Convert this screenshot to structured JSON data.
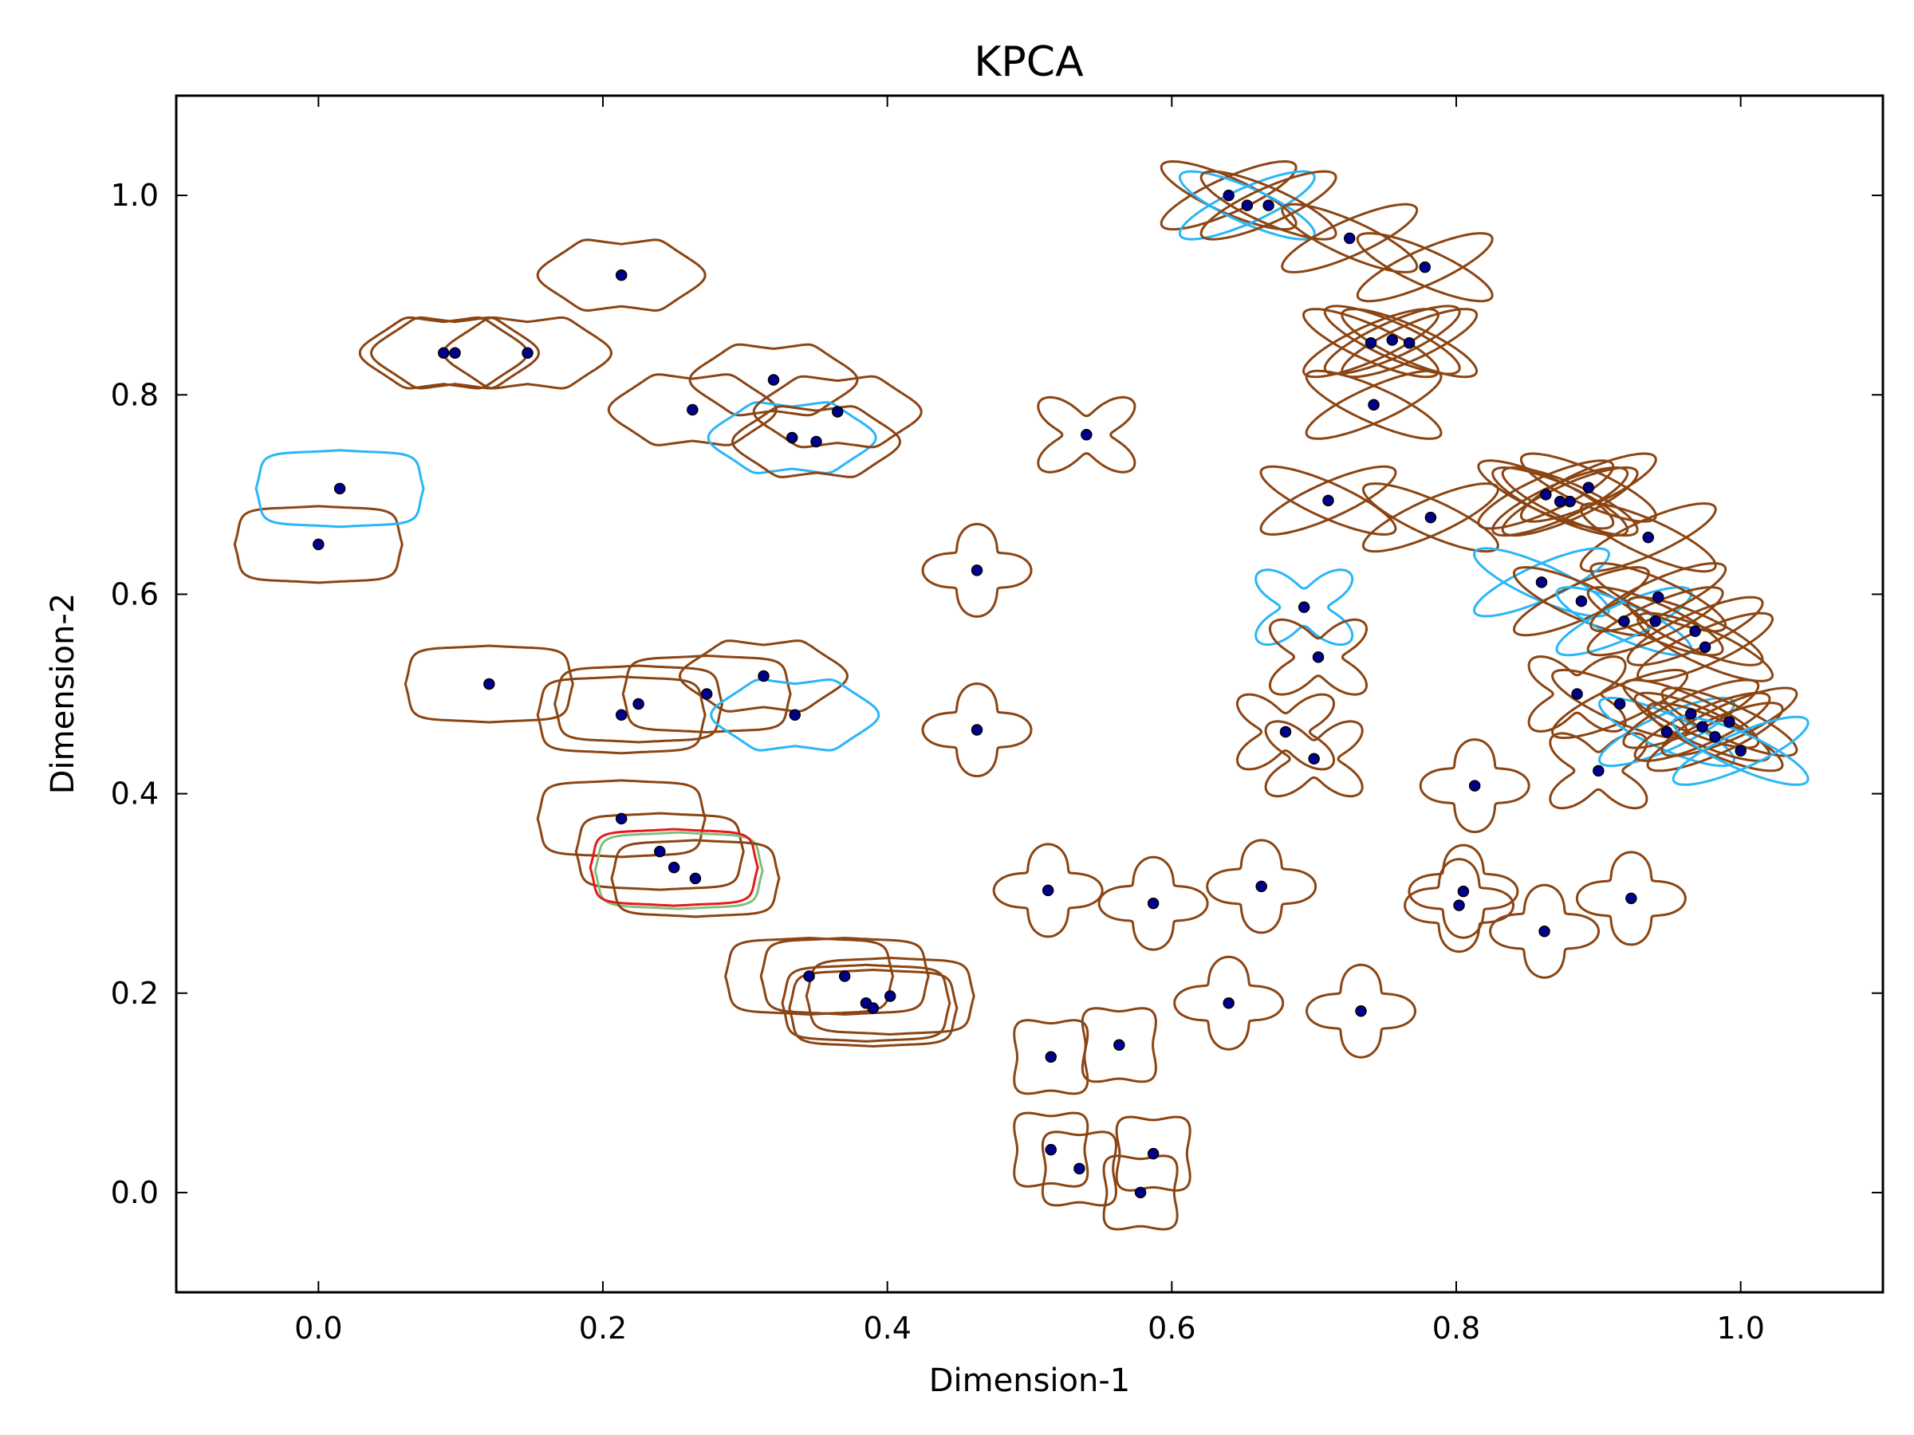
{
  "chart_data": {
    "type": "scatter",
    "title": "KPCA",
    "xlabel": "Dimension-1",
    "ylabel": "Dimension-2",
    "xlim": [
      -0.1,
      1.1
    ],
    "ylim": [
      -0.1,
      1.1
    ],
    "xticks": [
      "0.0",
      "0.2",
      "0.4",
      "0.6",
      "0.8",
      "1.0"
    ],
    "yticks": [
      "0.0",
      "0.2",
      "0.4",
      "0.6",
      "0.8",
      "1.0"
    ],
    "grid": false,
    "legend": "none",
    "colors": {
      "point_fill": "#00008b",
      "glyph_main": "#8b4513",
      "glyph_highlight": "#29b6f6",
      "glyph_accent_red": "#e41a1c",
      "glyph_accent_green": "#7fbf7f"
    },
    "points": [
      {
        "x": 0.0,
        "y": 0.65,
        "shape": "rect",
        "color": "main"
      },
      {
        "x": 0.015,
        "y": 0.706,
        "shape": "rect",
        "color": "highlight"
      },
      {
        "x": 0.088,
        "y": 0.842,
        "shape": "bow",
        "color": "main"
      },
      {
        "x": 0.096,
        "y": 0.842,
        "shape": "bow",
        "color": "main"
      },
      {
        "x": 0.147,
        "y": 0.842,
        "shape": "bow",
        "color": "main"
      },
      {
        "x": 0.213,
        "y": 0.92,
        "shape": "bow",
        "color": "main"
      },
      {
        "x": 0.263,
        "y": 0.785,
        "shape": "bow",
        "color": "main"
      },
      {
        "x": 0.32,
        "y": 0.815,
        "shape": "bow",
        "color": "main"
      },
      {
        "x": 0.333,
        "y": 0.757,
        "shape": "bow",
        "color": "highlight"
      },
      {
        "x": 0.35,
        "y": 0.753,
        "shape": "bow",
        "color": "main"
      },
      {
        "x": 0.365,
        "y": 0.783,
        "shape": "bow",
        "color": "main"
      },
      {
        "x": 0.12,
        "y": 0.51,
        "shape": "rect",
        "color": "main"
      },
      {
        "x": 0.213,
        "y": 0.479,
        "shape": "rect",
        "color": "main"
      },
      {
        "x": 0.225,
        "y": 0.49,
        "shape": "rect",
        "color": "main"
      },
      {
        "x": 0.273,
        "y": 0.5,
        "shape": "rect",
        "color": "main"
      },
      {
        "x": 0.313,
        "y": 0.518,
        "shape": "bow",
        "color": "main"
      },
      {
        "x": 0.335,
        "y": 0.479,
        "shape": "bow",
        "color": "highlight"
      },
      {
        "x": 0.213,
        "y": 0.375,
        "shape": "rect",
        "color": "main"
      },
      {
        "x": 0.24,
        "y": 0.342,
        "shape": "rect",
        "color": "main"
      },
      {
        "x": 0.25,
        "y": 0.326,
        "shape": "rect",
        "color": "red"
      },
      {
        "x": 0.265,
        "y": 0.315,
        "shape": "rect",
        "color": "main"
      },
      {
        "x": 0.345,
        "y": 0.217,
        "shape": "rect",
        "color": "main"
      },
      {
        "x": 0.37,
        "y": 0.217,
        "shape": "rect",
        "color": "main"
      },
      {
        "x": 0.385,
        "y": 0.19,
        "shape": "rect",
        "color": "main"
      },
      {
        "x": 0.39,
        "y": 0.185,
        "shape": "rect",
        "color": "main"
      },
      {
        "x": 0.402,
        "y": 0.197,
        "shape": "rect",
        "color": "main"
      },
      {
        "x": 0.463,
        "y": 0.624,
        "shape": "star",
        "color": "main"
      },
      {
        "x": 0.463,
        "y": 0.464,
        "shape": "star",
        "color": "main"
      },
      {
        "x": 0.54,
        "y": 0.76,
        "shape": "xstar",
        "color": "main"
      },
      {
        "x": 0.513,
        "y": 0.303,
        "shape": "star",
        "color": "main"
      },
      {
        "x": 0.587,
        "y": 0.29,
        "shape": "star",
        "color": "main"
      },
      {
        "x": 0.663,
        "y": 0.307,
        "shape": "star",
        "color": "main"
      },
      {
        "x": 0.64,
        "y": 0.19,
        "shape": "star",
        "color": "main"
      },
      {
        "x": 0.733,
        "y": 0.182,
        "shape": "star",
        "color": "main"
      },
      {
        "x": 0.515,
        "y": 0.136,
        "shape": "sq",
        "color": "main"
      },
      {
        "x": 0.563,
        "y": 0.148,
        "shape": "sq",
        "color": "main"
      },
      {
        "x": 0.515,
        "y": 0.043,
        "shape": "sq",
        "color": "main"
      },
      {
        "x": 0.535,
        "y": 0.024,
        "shape": "sq",
        "color": "main"
      },
      {
        "x": 0.587,
        "y": 0.039,
        "shape": "sq",
        "color": "main"
      },
      {
        "x": 0.578,
        "y": 0.0,
        "shape": "sq",
        "color": "main"
      },
      {
        "x": 0.64,
        "y": 1.0,
        "shape": "xlong",
        "color": "main"
      },
      {
        "x": 0.653,
        "y": 0.99,
        "shape": "xlong",
        "color": "highlight"
      },
      {
        "x": 0.668,
        "y": 0.99,
        "shape": "xlong",
        "color": "main"
      },
      {
        "x": 0.725,
        "y": 0.957,
        "shape": "xlong",
        "color": "main"
      },
      {
        "x": 0.778,
        "y": 0.928,
        "shape": "xlong",
        "color": "main"
      },
      {
        "x": 0.74,
        "y": 0.852,
        "shape": "xlong",
        "color": "main"
      },
      {
        "x": 0.755,
        "y": 0.855,
        "shape": "xlong",
        "color": "main"
      },
      {
        "x": 0.767,
        "y": 0.852,
        "shape": "xlong",
        "color": "main"
      },
      {
        "x": 0.742,
        "y": 0.79,
        "shape": "xlong",
        "color": "main"
      },
      {
        "x": 0.71,
        "y": 0.694,
        "shape": "xlong",
        "color": "main"
      },
      {
        "x": 0.782,
        "y": 0.677,
        "shape": "xlong",
        "color": "main"
      },
      {
        "x": 0.693,
        "y": 0.587,
        "shape": "xstar",
        "color": "highlight"
      },
      {
        "x": 0.703,
        "y": 0.537,
        "shape": "xstar",
        "color": "main"
      },
      {
        "x": 0.68,
        "y": 0.462,
        "shape": "xstar",
        "color": "main"
      },
      {
        "x": 0.7,
        "y": 0.435,
        "shape": "xstar",
        "color": "main"
      },
      {
        "x": 0.813,
        "y": 0.408,
        "shape": "star",
        "color": "main"
      },
      {
        "x": 0.805,
        "y": 0.302,
        "shape": "star",
        "color": "main"
      },
      {
        "x": 0.802,
        "y": 0.288,
        "shape": "star",
        "color": "main"
      },
      {
        "x": 0.862,
        "y": 0.262,
        "shape": "star",
        "color": "main"
      },
      {
        "x": 0.923,
        "y": 0.295,
        "shape": "star",
        "color": "main"
      },
      {
        "x": 0.863,
        "y": 0.7,
        "shape": "xlong",
        "color": "main"
      },
      {
        "x": 0.873,
        "y": 0.693,
        "shape": "xlong",
        "color": "main"
      },
      {
        "x": 0.88,
        "y": 0.693,
        "shape": "xlong",
        "color": "main"
      },
      {
        "x": 0.893,
        "y": 0.707,
        "shape": "xlong",
        "color": "main"
      },
      {
        "x": 0.935,
        "y": 0.657,
        "shape": "xlong",
        "color": "main"
      },
      {
        "x": 0.86,
        "y": 0.612,
        "shape": "xlong",
        "color": "highlight"
      },
      {
        "x": 0.888,
        "y": 0.593,
        "shape": "xlong",
        "color": "main"
      },
      {
        "x": 0.918,
        "y": 0.573,
        "shape": "xlong",
        "color": "highlight"
      },
      {
        "x": 0.94,
        "y": 0.573,
        "shape": "xlong",
        "color": "main"
      },
      {
        "x": 0.942,
        "y": 0.597,
        "shape": "xlong",
        "color": "main"
      },
      {
        "x": 0.968,
        "y": 0.563,
        "shape": "xlong",
        "color": "main"
      },
      {
        "x": 0.975,
        "y": 0.547,
        "shape": "xlong",
        "color": "main"
      },
      {
        "x": 0.885,
        "y": 0.5,
        "shape": "xstar",
        "color": "main"
      },
      {
        "x": 0.915,
        "y": 0.49,
        "shape": "xlong",
        "color": "main"
      },
      {
        "x": 0.9,
        "y": 0.423,
        "shape": "xstar",
        "color": "main"
      },
      {
        "x": 0.948,
        "y": 0.462,
        "shape": "xlong",
        "color": "highlight"
      },
      {
        "x": 0.965,
        "y": 0.48,
        "shape": "xlong",
        "color": "main"
      },
      {
        "x": 0.973,
        "y": 0.467,
        "shape": "xlong",
        "color": "main"
      },
      {
        "x": 0.982,
        "y": 0.457,
        "shape": "xlong",
        "color": "main"
      },
      {
        "x": 0.992,
        "y": 0.472,
        "shape": "xlong",
        "color": "main"
      },
      {
        "x": 1.0,
        "y": 0.443,
        "shape": "xlong",
        "color": "highlight"
      }
    ]
  }
}
